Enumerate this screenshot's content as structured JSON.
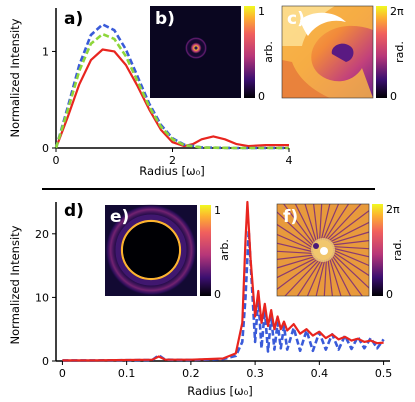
{
  "chart_data": [
    {
      "panel": "a)",
      "type": "line",
      "xlabel": "Radius [ω₀]",
      "ylabel": "Normalized Intensity",
      "xlim": [
        0,
        4
      ],
      "ylim": [
        0,
        1.45
      ],
      "xticks": [
        "0",
        "2",
        "4"
      ],
      "yticks": [
        "0",
        "1"
      ],
      "grid": false,
      "series": [
        {
          "color": "#e8251f",
          "style": "solid",
          "points": [
            [
              0,
              0
            ],
            [
              0.2,
              0.32
            ],
            [
              0.4,
              0.66
            ],
            [
              0.6,
              0.91
            ],
            [
              0.8,
              1.02
            ],
            [
              1.0,
              1.0
            ],
            [
              1.2,
              0.86
            ],
            [
              1.4,
              0.64
            ],
            [
              1.6,
              0.4
            ],
            [
              1.8,
              0.19
            ],
            [
              2.0,
              0.06
            ],
            [
              2.2,
              0.02
            ],
            [
              2.35,
              0.04
            ],
            [
              2.5,
              0.09
            ],
            [
              2.7,
              0.12
            ],
            [
              2.9,
              0.09
            ],
            [
              3.1,
              0.04
            ],
            [
              3.3,
              0.02
            ],
            [
              3.6,
              0.03
            ],
            [
              4.0,
              0.03
            ]
          ]
        },
        {
          "color": "#3a5bd9",
          "style": "dashed",
          "points": [
            [
              0,
              0
            ],
            [
              0.2,
              0.42
            ],
            [
              0.4,
              0.86
            ],
            [
              0.6,
              1.17
            ],
            [
              0.8,
              1.28
            ],
            [
              1.0,
              1.22
            ],
            [
              1.2,
              1.02
            ],
            [
              1.4,
              0.74
            ],
            [
              1.6,
              0.46
            ],
            [
              1.8,
              0.24
            ],
            [
              2.0,
              0.1
            ],
            [
              2.2,
              0.035
            ],
            [
              2.5,
              0.006
            ],
            [
              3.0,
              0
            ],
            [
              4.0,
              0
            ]
          ]
        },
        {
          "color": "#8ed63a",
          "style": "dashed",
          "points": [
            [
              0,
              0
            ],
            [
              0.2,
              0.39
            ],
            [
              0.4,
              0.8
            ],
            [
              0.6,
              1.08
            ],
            [
              0.8,
              1.18
            ],
            [
              1.0,
              1.13
            ],
            [
              1.2,
              0.95
            ],
            [
              1.4,
              0.69
            ],
            [
              1.6,
              0.43
            ],
            [
              1.8,
              0.22
            ],
            [
              2.0,
              0.09
            ],
            [
              2.2,
              0.03
            ],
            [
              2.5,
              0.005
            ],
            [
              3.0,
              0
            ],
            [
              4.0,
              0
            ]
          ]
        }
      ]
    },
    {
      "panel": "b)",
      "type": "heatmap",
      "colorbar_ticks": [
        "1",
        "0"
      ],
      "colorbar_label": "arb."
    },
    {
      "panel": "c)",
      "type": "heatmap",
      "colorbar_ticks": [
        "2π",
        "0"
      ],
      "colorbar_label": "rad."
    },
    {
      "panel": "d)",
      "type": "line",
      "xlabel": "Radius [ω₀]",
      "ylabel": "Normalized Intensity",
      "xlim": [
        -0.01,
        0.51
      ],
      "ylim": [
        0,
        25
      ],
      "xticks": [
        "0",
        "0.1",
        "0.2",
        "0.3",
        "0.4",
        "0.5"
      ],
      "yticks": [
        "0",
        "10",
        "20"
      ],
      "grid": false,
      "series": [
        {
          "color": "#3a5bd9",
          "style": "dashed",
          "points": [
            [
              0,
              0.1
            ],
            [
              0.05,
              0.1
            ],
            [
              0.1,
              0.12
            ],
            [
              0.14,
              0.15
            ],
            [
              0.15,
              0.9
            ],
            [
              0.16,
              0.2
            ],
            [
              0.2,
              0.15
            ],
            [
              0.25,
              0.3
            ],
            [
              0.27,
              0.8
            ],
            [
              0.28,
              3
            ],
            [
              0.285,
              10
            ],
            [
              0.29,
              20.5
            ],
            [
              0.295,
              12
            ],
            [
              0.3,
              3
            ],
            [
              0.305,
              10
            ],
            [
              0.31,
              2
            ],
            [
              0.315,
              8
            ],
            [
              0.32,
              1.5
            ],
            [
              0.325,
              7
            ],
            [
              0.33,
              1.8
            ],
            [
              0.335,
              6
            ],
            [
              0.34,
              2
            ],
            [
              0.345,
              5.5
            ],
            [
              0.35,
              1.8
            ],
            [
              0.36,
              5.2
            ],
            [
              0.37,
              1.6
            ],
            [
              0.38,
              4.8
            ],
            [
              0.39,
              1.6
            ],
            [
              0.4,
              4.5
            ],
            [
              0.41,
              1.8
            ],
            [
              0.42,
              4.2
            ],
            [
              0.43,
              1.8
            ],
            [
              0.44,
              4
            ],
            [
              0.45,
              1.9
            ],
            [
              0.46,
              3.8
            ],
            [
              0.47,
              2
            ],
            [
              0.48,
              3.6
            ],
            [
              0.49,
              2
            ],
            [
              0.5,
              3.4
            ]
          ]
        },
        {
          "color": "#e8251f",
          "style": "solid",
          "points": [
            [
              0,
              0.1
            ],
            [
              0.05,
              0.1
            ],
            [
              0.1,
              0.15
            ],
            [
              0.14,
              0.2
            ],
            [
              0.15,
              0.7
            ],
            [
              0.16,
              0.2
            ],
            [
              0.2,
              0.2
            ],
            [
              0.25,
              0.4
            ],
            [
              0.27,
              1.2
            ],
            [
              0.28,
              6
            ],
            [
              0.285,
              19
            ],
            [
              0.288,
              25
            ],
            [
              0.293,
              16
            ],
            [
              0.3,
              7
            ],
            [
              0.305,
              11
            ],
            [
              0.31,
              6
            ],
            [
              0.315,
              9
            ],
            [
              0.32,
              5.5
            ],
            [
              0.325,
              8
            ],
            [
              0.33,
              5
            ],
            [
              0.335,
              7
            ],
            [
              0.34,
              5
            ],
            [
              0.345,
              6.2
            ],
            [
              0.35,
              4.8
            ],
            [
              0.36,
              5.8
            ],
            [
              0.37,
              4.3
            ],
            [
              0.38,
              5
            ],
            [
              0.39,
              4
            ],
            [
              0.4,
              4.6
            ],
            [
              0.41,
              3.6
            ],
            [
              0.42,
              4.2
            ],
            [
              0.43,
              3.4
            ],
            [
              0.44,
              3.8
            ],
            [
              0.45,
              3.2
            ],
            [
              0.46,
              3.5
            ],
            [
              0.47,
              3
            ],
            [
              0.48,
              3.2
            ],
            [
              0.49,
              2.8
            ],
            [
              0.5,
              2.9
            ]
          ]
        }
      ]
    },
    {
      "panel": "e)",
      "type": "heatmap",
      "colorbar_ticks": [
        "1",
        "0"
      ],
      "colorbar_label": "arb."
    },
    {
      "panel": "f)",
      "type": "heatmap",
      "colorbar_ticks": [
        "2π",
        "0"
      ],
      "colorbar_label": "rad."
    }
  ]
}
